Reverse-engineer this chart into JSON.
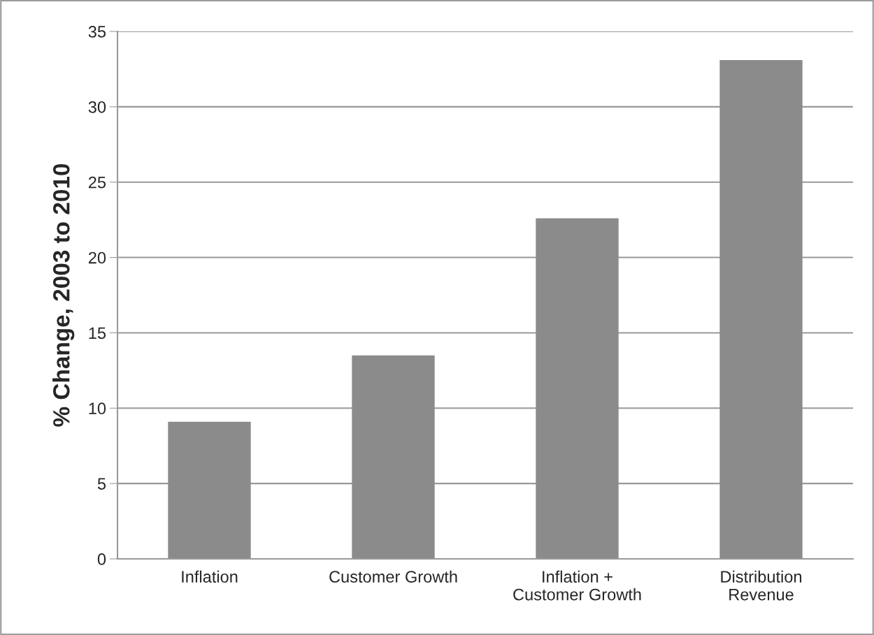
{
  "chart_data": {
    "type": "bar",
    "ylabel": "% Change, 2003 to 2010",
    "categories": [
      "Inflation",
      "Customer Growth",
      "Inflation +\nCustomer Growth",
      "Distribution\nRevenue"
    ],
    "values": [
      9.1,
      13.5,
      22.6,
      33.1
    ],
    "color": "#8a8b8a",
    "ylim": [
      0,
      35
    ],
    "yticks": [
      0,
      5,
      10,
      15,
      20,
      25,
      30,
      35
    ],
    "grid": "y"
  }
}
